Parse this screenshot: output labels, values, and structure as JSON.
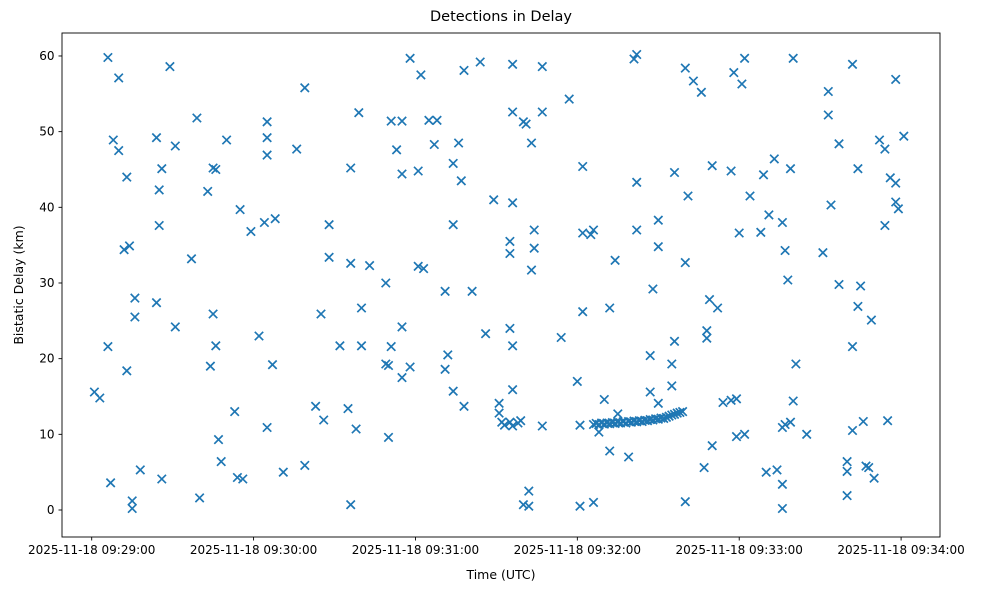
{
  "figure": {
    "title": "Detections in Delay",
    "xlabel": "Time (UTC)",
    "ylabel": "Bistatic Delay (km)"
  },
  "chart_data": {
    "type": "scatter",
    "title": "Detections in Delay",
    "xlabel": "Time (UTC)",
    "ylabel": "Bistatic Delay (km)",
    "date": "2025-11-18",
    "marker": "x",
    "marker_color": "#1f77b4",
    "grid": false,
    "legend": "none",
    "x_tick_labels": [
      "2025-11-18 09:29:00",
      "2025-11-18 09:30:00",
      "2025-11-18 09:31:00",
      "2025-11-18 09:32:00",
      "2025-11-18 09:33:00",
      "2025-11-18 09:34:00"
    ],
    "y_ticks": [
      0,
      10,
      20,
      30,
      40,
      50,
      60
    ],
    "xlim_seconds_from_0929": [
      -11.0,
      314.5
    ],
    "ylim": [
      -3.6,
      63.0
    ],
    "points": [
      [
        "09:29:01",
        15.6
      ],
      [
        "09:29:03",
        14.8
      ],
      [
        "09:29:06",
        59.8
      ],
      [
        "09:29:06",
        21.6
      ],
      [
        "09:29:07",
        3.6
      ],
      [
        "09:29:08",
        48.9
      ],
      [
        "09:29:10",
        57.1
      ],
      [
        "09:29:10",
        47.5
      ],
      [
        "09:29:12",
        34.4
      ],
      [
        "09:29:13",
        44.0
      ],
      [
        "09:29:13",
        18.4
      ],
      [
        "09:29:14",
        34.9
      ],
      [
        "09:29:15",
        1.2
      ],
      [
        "09:29:15",
        0.2
      ],
      [
        "09:29:16",
        28.0
      ],
      [
        "09:29:16",
        25.5
      ],
      [
        "09:29:18",
        5.3
      ],
      [
        "09:29:24",
        49.2
      ],
      [
        "09:29:24",
        27.4
      ],
      [
        "09:29:25",
        42.3
      ],
      [
        "09:29:25",
        37.6
      ],
      [
        "09:29:26",
        45.1
      ],
      [
        "09:29:26",
        4.1
      ],
      [
        "09:29:29",
        58.6
      ],
      [
        "09:29:31",
        48.1
      ],
      [
        "09:29:31",
        24.2
      ],
      [
        "09:29:37",
        33.2
      ],
      [
        "09:29:39",
        51.8
      ],
      [
        "09:29:40",
        1.6
      ],
      [
        "09:29:43",
        42.1
      ],
      [
        "09:29:44",
        19.0
      ],
      [
        "09:29:45",
        45.2
      ],
      [
        "09:29:45",
        25.9
      ],
      [
        "09:29:46",
        45.0
      ],
      [
        "09:29:46",
        21.7
      ],
      [
        "09:29:47",
        9.3
      ],
      [
        "09:29:48",
        6.4
      ],
      [
        "09:29:50",
        48.9
      ],
      [
        "09:29:53",
        13.0
      ],
      [
        "09:29:54",
        4.3
      ],
      [
        "09:29:55",
        39.7
      ],
      [
        "09:29:56",
        4.1
      ],
      [
        "09:29:59",
        36.8
      ],
      [
        "09:30:02",
        23.0
      ],
      [
        "09:30:04",
        38.0
      ],
      [
        "09:30:05",
        51.3
      ],
      [
        "09:30:05",
        49.2
      ],
      [
        "09:30:05",
        46.9
      ],
      [
        "09:30:05",
        10.9
      ],
      [
        "09:30:07",
        19.2
      ],
      [
        "09:30:08",
        38.5
      ],
      [
        "09:30:11",
        5.0
      ],
      [
        "09:30:16",
        47.7
      ],
      [
        "09:30:19",
        55.8
      ],
      [
        "09:30:19",
        5.9
      ],
      [
        "09:30:23",
        13.7
      ],
      [
        "09:30:25",
        25.9
      ],
      [
        "09:30:26",
        11.9
      ],
      [
        "09:30:28",
        37.7
      ],
      [
        "09:30:28",
        33.4
      ],
      [
        "09:30:32",
        21.7
      ],
      [
        "09:30:35",
        13.4
      ],
      [
        "09:30:36",
        45.2
      ],
      [
        "09:30:36",
        32.6
      ],
      [
        "09:30:36",
        0.7
      ],
      [
        "09:30:38",
        10.7
      ],
      [
        "09:30:39",
        52.5
      ],
      [
        "09:30:40",
        26.7
      ],
      [
        "09:30:40",
        21.7
      ],
      [
        "09:30:43",
        32.3
      ],
      [
        "09:30:49",
        30.0
      ],
      [
        "09:30:49",
        19.3
      ],
      [
        "09:30:50",
        19.1
      ],
      [
        "09:30:50",
        9.6
      ],
      [
        "09:30:51",
        51.4
      ],
      [
        "09:30:51",
        21.6
      ],
      [
        "09:30:53",
        47.6
      ],
      [
        "09:30:55",
        51.4
      ],
      [
        "09:30:55",
        44.4
      ],
      [
        "09:30:55",
        24.2
      ],
      [
        "09:30:55",
        17.5
      ],
      [
        "09:30:58",
        59.7
      ],
      [
        "09:30:58",
        18.9
      ],
      [
        "09:31:01",
        44.8
      ],
      [
        "09:31:01",
        32.2
      ],
      [
        "09:31:02",
        57.5
      ],
      [
        "09:31:03",
        31.9
      ],
      [
        "09:31:05",
        51.5
      ],
      [
        "09:31:07",
        48.3
      ],
      [
        "09:31:08",
        51.5
      ],
      [
        "09:31:11",
        28.9
      ],
      [
        "09:31:11",
        18.6
      ],
      [
        "09:31:12",
        20.5
      ],
      [
        "09:31:14",
        45.8
      ],
      [
        "09:31:14",
        37.7
      ],
      [
        "09:31:14",
        15.7
      ],
      [
        "09:31:16",
        48.5
      ],
      [
        "09:31:17",
        43.5
      ],
      [
        "09:31:18",
        58.1
      ],
      [
        "09:31:18",
        13.7
      ],
      [
        "09:31:21",
        28.9
      ],
      [
        "09:31:24",
        59.2
      ],
      [
        "09:31:26",
        23.3
      ],
      [
        "09:31:29",
        41.0
      ],
      [
        "09:31:31",
        14.1
      ],
      [
        "09:31:31",
        12.8
      ],
      [
        "09:31:32",
        11.6
      ],
      [
        "09:31:33",
        11.2
      ],
      [
        "09:31:35",
        35.5
      ],
      [
        "09:31:35",
        33.9
      ],
      [
        "09:31:35",
        24.0
      ],
      [
        "09:31:35",
        11.6
      ],
      [
        "09:31:36",
        58.9
      ],
      [
        "09:31:36",
        52.6
      ],
      [
        "09:31:36",
        40.6
      ],
      [
        "09:31:36",
        21.7
      ],
      [
        "09:31:36",
        15.9
      ],
      [
        "09:31:36",
        11.1
      ],
      [
        "09:31:38",
        11.5
      ],
      [
        "09:31:39",
        11.8
      ],
      [
        "09:31:40",
        51.3
      ],
      [
        "09:31:40",
        0.7
      ],
      [
        "09:31:41",
        51.0
      ],
      [
        "09:31:42",
        2.5
      ],
      [
        "09:31:42",
        0.5
      ],
      [
        "09:31:43",
        48.5
      ],
      [
        "09:31:43",
        31.7
      ],
      [
        "09:31:44",
        37.0
      ],
      [
        "09:31:44",
        34.6
      ],
      [
        "09:31:47",
        58.6
      ],
      [
        "09:31:47",
        52.6
      ],
      [
        "09:31:47",
        11.1
      ],
      [
        "09:31:54",
        22.8
      ],
      [
        "09:31:57",
        54.3
      ],
      [
        "09:32:00",
        17.0
      ],
      [
        "09:32:01",
        11.2
      ],
      [
        "09:32:01",
        0.5
      ],
      [
        "09:32:02",
        45.4
      ],
      [
        "09:32:02",
        36.6
      ],
      [
        "09:32:02",
        26.2
      ],
      [
        "09:32:05",
        36.4
      ],
      [
        "09:32:06",
        37.0
      ],
      [
        "09:32:06",
        11.3
      ],
      [
        "09:32:06",
        1.0
      ],
      [
        "09:32:07",
        11.45
      ],
      [
        "09:32:08",
        11.3
      ],
      [
        "09:32:08",
        10.3
      ],
      [
        "09:32:09",
        11.5
      ],
      [
        "09:32:10",
        14.6
      ],
      [
        "09:32:10",
        11.35
      ],
      [
        "09:32:11",
        11.5
      ],
      [
        "09:32:12",
        26.7
      ],
      [
        "09:32:12",
        11.4
      ],
      [
        "09:32:12",
        7.8
      ],
      [
        "09:32:13",
        11.55
      ],
      [
        "09:32:14",
        33.0
      ],
      [
        "09:32:14",
        11.45
      ],
      [
        "09:32:15",
        12.7
      ],
      [
        "09:32:15",
        11.6
      ],
      [
        "09:32:16",
        11.5
      ],
      [
        "09:32:17",
        11.65
      ],
      [
        "09:32:18",
        11.5
      ],
      [
        "09:32:19",
        11.7
      ],
      [
        "09:32:19",
        7.0
      ],
      [
        "09:32:20",
        11.6
      ],
      [
        "09:32:21",
        59.6
      ],
      [
        "09:32:21",
        11.75
      ],
      [
        "09:32:22",
        60.2
      ],
      [
        "09:32:22",
        43.3
      ],
      [
        "09:32:22",
        37.0
      ],
      [
        "09:32:22",
        11.65
      ],
      [
        "09:32:23",
        11.8
      ],
      [
        "09:32:24",
        11.7
      ],
      [
        "09:32:25",
        11.85
      ],
      [
        "09:32:26",
        11.8
      ],
      [
        "09:32:27",
        20.4
      ],
      [
        "09:32:27",
        15.6
      ],
      [
        "09:32:27",
        11.95
      ],
      [
        "09:32:28",
        29.2
      ],
      [
        "09:32:28",
        11.9
      ],
      [
        "09:32:29",
        12.05
      ],
      [
        "09:32:30",
        38.3
      ],
      [
        "09:32:30",
        34.8
      ],
      [
        "09:32:30",
        14.1
      ],
      [
        "09:32:30",
        12.0
      ],
      [
        "09:32:31",
        12.15
      ],
      [
        "09:32:32",
        12.1
      ],
      [
        "09:32:33",
        12.25
      ],
      [
        "09:32:34",
        12.4
      ],
      [
        "09:32:35",
        19.3
      ],
      [
        "09:32:35",
        16.4
      ],
      [
        "09:32:35",
        12.55
      ],
      [
        "09:32:36",
        44.6
      ],
      [
        "09:32:36",
        22.3
      ],
      [
        "09:32:36",
        12.65
      ],
      [
        "09:32:37",
        12.8
      ],
      [
        "09:32:38",
        12.9
      ],
      [
        "09:32:39",
        13.0
      ],
      [
        "09:32:40",
        58.4
      ],
      [
        "09:32:40",
        32.7
      ],
      [
        "09:32:40",
        1.1
      ],
      [
        "09:32:41",
        41.5
      ],
      [
        "09:32:43",
        56.7
      ],
      [
        "09:32:46",
        55.2
      ],
      [
        "09:32:47",
        5.6
      ],
      [
        "09:32:48",
        23.7
      ],
      [
        "09:32:48",
        22.7
      ],
      [
        "09:32:49",
        27.8
      ],
      [
        "09:32:50",
        45.5
      ],
      [
        "09:32:50",
        8.5
      ],
      [
        "09:32:52",
        26.7
      ],
      [
        "09:32:54",
        14.2
      ],
      [
        "09:32:57",
        44.8
      ],
      [
        "09:32:57",
        14.5
      ],
      [
        "09:32:58",
        57.8
      ],
      [
        "09:32:59",
        14.7
      ],
      [
        "09:32:59",
        9.7
      ],
      [
        "09:33:00",
        36.6
      ],
      [
        "09:33:01",
        56.3
      ],
      [
        "09:33:02",
        59.7
      ],
      [
        "09:33:02",
        10.0
      ],
      [
        "09:33:04",
        41.5
      ],
      [
        "09:33:08",
        36.7
      ],
      [
        "09:33:09",
        44.3
      ],
      [
        "09:33:10",
        5.0
      ],
      [
        "09:33:11",
        39.0
      ],
      [
        "09:33:13",
        46.4
      ],
      [
        "09:33:14",
        5.3
      ],
      [
        "09:33:16",
        38.0
      ],
      [
        "09:33:16",
        10.9
      ],
      [
        "09:33:16",
        3.4
      ],
      [
        "09:33:16",
        0.2
      ],
      [
        "09:33:17",
        34.3
      ],
      [
        "09:33:17",
        11.3
      ],
      [
        "09:33:18",
        30.4
      ],
      [
        "09:33:19",
        45.1
      ],
      [
        "09:33:19",
        11.6
      ],
      [
        "09:33:20",
        59.7
      ],
      [
        "09:33:20",
        14.4
      ],
      [
        "09:33:21",
        19.3
      ],
      [
        "09:33:25",
        10.0
      ],
      [
        "09:33:31",
        34.0
      ],
      [
        "09:33:33",
        55.3
      ],
      [
        "09:33:33",
        52.2
      ],
      [
        "09:33:34",
        40.3
      ],
      [
        "09:33:37",
        48.4
      ],
      [
        "09:33:37",
        29.8
      ],
      [
        "09:33:40",
        6.4
      ],
      [
        "09:33:40",
        5.1
      ],
      [
        "09:33:40",
        1.9
      ],
      [
        "09:33:42",
        58.9
      ],
      [
        "09:33:42",
        21.6
      ],
      [
        "09:33:42",
        10.5
      ],
      [
        "09:33:44",
        45.1
      ],
      [
        "09:33:44",
        26.9
      ],
      [
        "09:33:45",
        29.6
      ],
      [
        "09:33:46",
        11.7
      ],
      [
        "09:33:47",
        5.8
      ],
      [
        "09:33:48",
        5.6
      ],
      [
        "09:33:49",
        25.1
      ],
      [
        "09:33:50",
        4.2
      ],
      [
        "09:33:52",
        48.9
      ],
      [
        "09:33:54",
        47.7
      ],
      [
        "09:33:54",
        37.6
      ],
      [
        "09:33:55",
        11.8
      ],
      [
        "09:33:56",
        43.9
      ],
      [
        "09:33:58",
        56.9
      ],
      [
        "09:33:58",
        43.2
      ],
      [
        "09:33:58",
        40.7
      ],
      [
        "09:33:59",
        39.8
      ],
      [
        "09:34:01",
        49.4
      ]
    ]
  }
}
